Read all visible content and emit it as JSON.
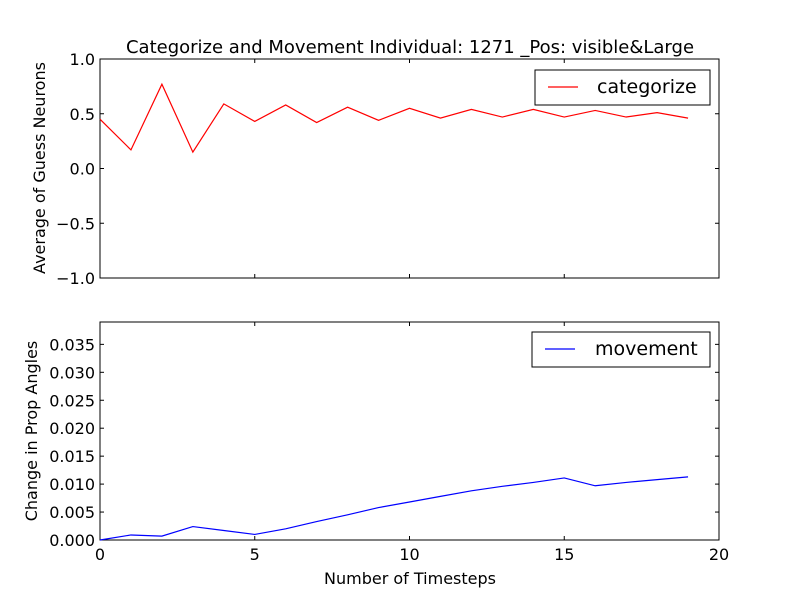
{
  "title": "Categorize and Movement Individual: 1271 _Pos: visible&Large",
  "chart_data": [
    {
      "type": "line",
      "title": "Categorize and Movement Individual: 1271 _Pos: visible&Large",
      "xlabel": "",
      "ylabel": "Average of Guess Neurons",
      "xlim": [
        0,
        20
      ],
      "ylim": [
        -1.0,
        1.0
      ],
      "xticks": [
        0,
        5,
        10,
        15,
        20
      ],
      "yticks": [
        -1.0,
        -0.5,
        0.0,
        0.5,
        1.0
      ],
      "xtick_labels": [
        "",
        "",
        "",
        "",
        ""
      ],
      "ytick_labels": [
        "−1.0",
        "−0.5",
        "0.0",
        "0.5",
        "1.0"
      ],
      "legend_position": "top-right",
      "grid": false,
      "series": [
        {
          "name": "categorize",
          "color": "#ff0000",
          "x": [
            0,
            1,
            2,
            3,
            4,
            5,
            6,
            7,
            8,
            9,
            10,
            11,
            12,
            13,
            14,
            15,
            16,
            17,
            18,
            19
          ],
          "y": [
            0.45,
            0.17,
            0.77,
            0.15,
            0.59,
            0.43,
            0.58,
            0.42,
            0.56,
            0.44,
            0.55,
            0.46,
            0.54,
            0.47,
            0.54,
            0.47,
            0.53,
            0.47,
            0.51,
            0.46
          ]
        }
      ]
    },
    {
      "type": "line",
      "title": "",
      "xlabel": "Number of Timesteps",
      "ylabel": "Change in Prop Angles",
      "xlim": [
        0,
        20
      ],
      "ylim": [
        0.0,
        0.039
      ],
      "xticks": [
        0,
        5,
        10,
        15,
        20
      ],
      "yticks": [
        0.0,
        0.005,
        0.01,
        0.015,
        0.02,
        0.025,
        0.03,
        0.035
      ],
      "xtick_labels": [
        "0",
        "5",
        "10",
        "15",
        "20"
      ],
      "ytick_labels": [
        "0.000",
        "0.005",
        "0.010",
        "0.015",
        "0.020",
        "0.025",
        "0.030",
        "0.035"
      ],
      "legend_position": "top-right",
      "grid": false,
      "series": [
        {
          "name": "movement",
          "color": "#0000ff",
          "x": [
            0,
            1,
            2,
            3,
            4,
            5,
            6,
            7,
            8,
            9,
            10,
            11,
            12,
            13,
            14,
            15,
            16,
            17,
            18,
            19
          ],
          "y": [
            0.0,
            0.0009,
            0.0007,
            0.0024,
            0.0017,
            0.001,
            0.002,
            0.0033,
            0.0045,
            0.0058,
            0.0068,
            0.0078,
            0.0088,
            0.0096,
            0.0103,
            0.0111,
            0.0097,
            0.0103,
            0.0108,
            0.0113
          ]
        }
      ]
    }
  ]
}
